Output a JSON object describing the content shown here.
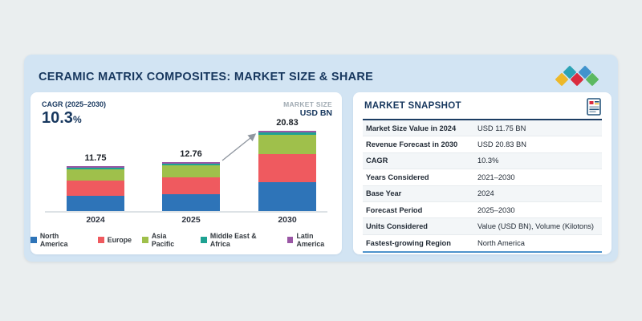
{
  "header": {
    "title": "CERAMIC MATRIX COMPOSITES: MARKET SIZE & SHARE"
  },
  "logo": {
    "name": "mordor-intelligence-diamonds-logo",
    "diamond_colors": [
      "#edb829",
      "#2ca3b5",
      "#da2c3e",
      "#4193cd",
      "#5cb961"
    ]
  },
  "chart_panel": {
    "cagr_label": "CAGR (2025–2030)",
    "cagr_value": "10.3",
    "cagr_unit": "%",
    "axis_note_line1": "MARKET SIZE",
    "axis_note_line2": "USD BN"
  },
  "chart_data": {
    "type": "bar",
    "stacked": true,
    "title": "Ceramic Matrix Composites market size by region",
    "ylabel": "USD BN",
    "grid": false,
    "legend_position": "bottom",
    "categories": [
      "2024",
      "2025",
      "2030"
    ],
    "totals": [
      11.75,
      12.76,
      20.83
    ],
    "total_labels": [
      "11.75",
      "12.76",
      "20.83"
    ],
    "series": [
      {
        "name": "North America",
        "color": "#2e74b8",
        "values": [
          4.05,
          4.4,
          7.5
        ]
      },
      {
        "name": "Europe",
        "color": "#ef5a5f",
        "values": [
          4.0,
          4.35,
          7.3
        ]
      },
      {
        "name": "Asia Pacific",
        "color": "#9fc04b",
        "values": [
          2.85,
          3.1,
          5.0
        ]
      },
      {
        "name": "Middle East & Africa",
        "color": "#1ea292",
        "values": [
          0.5,
          0.55,
          0.6
        ]
      },
      {
        "name": "Latin America",
        "color": "#9a57a5",
        "values": [
          0.35,
          0.36,
          0.43
        ]
      }
    ],
    "annotations": [
      "growth arrow from 2025 bar to 2030 bar"
    ]
  },
  "snapshot": {
    "title": "MARKET SNAPSHOT",
    "rows": [
      {
        "label": "Market Size Value in 2024",
        "value": "USD 11.75 BN"
      },
      {
        "label": "Revenue Forecast in 2030",
        "value": "USD 20.83 BN"
      },
      {
        "label": "CAGR",
        "value": "10.3%"
      },
      {
        "label": "Years Considered",
        "value": "2021–2030"
      },
      {
        "label": "Base Year",
        "value": "2024"
      },
      {
        "label": "Forecast Period",
        "value": "2025–2030"
      },
      {
        "label": "Units Considered",
        "value": "Value (USD BN), Volume (Kilotons)"
      },
      {
        "label": "Fastest-growing Region",
        "value": "North America"
      }
    ]
  }
}
